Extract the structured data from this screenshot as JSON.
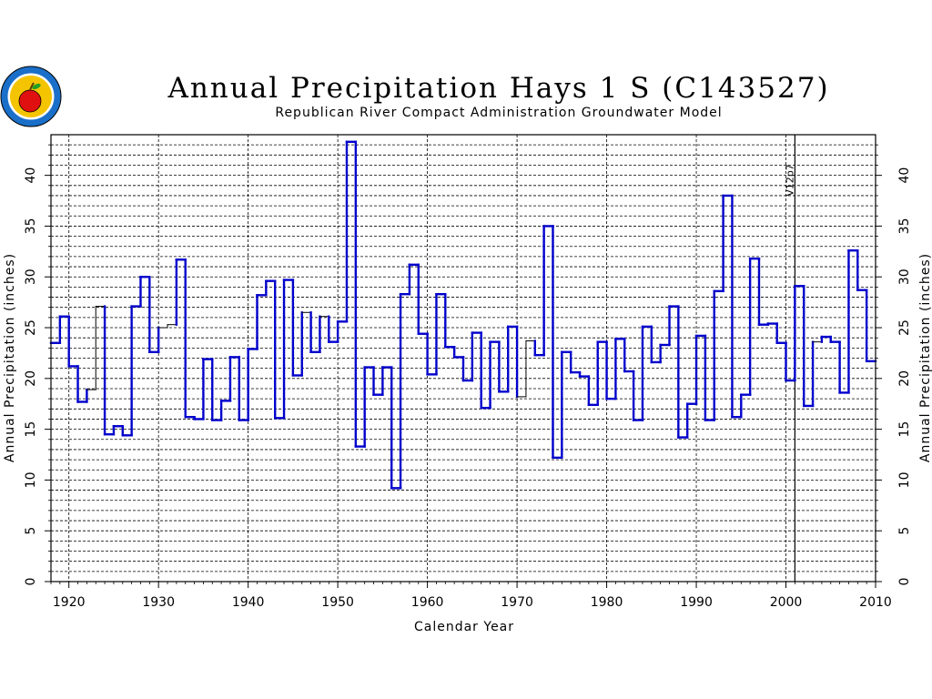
{
  "chart_data": {
    "type": "step",
    "title": "Annual Precipitation Hays 1 S (C143527)",
    "subtitle": "Republican River Compact Administration Groundwater Model",
    "xlabel": "Calendar Year",
    "ylabel": "Annual Precipitation (inches)",
    "xlim": [
      1918,
      2010
    ],
    "ylim": [
      0,
      44
    ],
    "x_ticks": [
      1920,
      1930,
      1940,
      1950,
      1960,
      1970,
      1980,
      1990,
      2000,
      2010
    ],
    "y_ticks": [
      0,
      5,
      10,
      15,
      20,
      25,
      30,
      35,
      40
    ],
    "y_minor_step": 1,
    "grid": true,
    "marker": {
      "year": 2001,
      "label": "V12p7"
    },
    "colors": {
      "estimated": "#0000cc",
      "measured": "#000000"
    },
    "series": [
      {
        "years": [
          1918,
          1919,
          1920,
          1921,
          1922,
          1923,
          1924,
          1925,
          1926,
          1927,
          1928,
          1929,
          1930,
          1931,
          1932,
          1933,
          1934,
          1935,
          1936,
          1937,
          1938,
          1939,
          1940,
          1941,
          1942,
          1943,
          1944,
          1945,
          1946,
          1947,
          1948,
          1949,
          1950,
          1951,
          1952,
          1953,
          1954,
          1955,
          1956,
          1957,
          1958,
          1959,
          1960,
          1961,
          1962,
          1963,
          1964,
          1965,
          1966,
          1967,
          1968,
          1969,
          1970,
          1971,
          1972,
          1973,
          1974,
          1975,
          1976,
          1977,
          1978,
          1979,
          1980,
          1981,
          1982,
          1983,
          1984,
          1985,
          1986,
          1987,
          1988,
          1989,
          1990,
          1991,
          1992,
          1993,
          1994,
          1995,
          1996,
          1997,
          1998,
          1999,
          2000,
          2001,
          2002,
          2003,
          2004,
          2005,
          2006,
          2007,
          2008,
          2009
        ],
        "values": [
          23.5,
          26.1,
          21.2,
          17.7,
          18.9,
          27.1,
          14.5,
          15.3,
          14.4,
          27.1,
          30.0,
          22.6,
          25.0,
          25.3,
          31.7,
          16.2,
          16.0,
          21.9,
          15.9,
          17.8,
          22.1,
          15.9,
          22.9,
          28.2,
          29.6,
          16.1,
          29.7,
          20.3,
          26.5,
          22.6,
          26.1,
          23.6,
          25.6,
          43.3,
          13.3,
          21.1,
          18.4,
          21.1,
          9.2,
          28.3,
          31.2,
          24.4,
          20.4,
          28.3,
          23.1,
          22.1,
          19.8,
          24.5,
          17.1,
          23.6,
          18.7,
          25.1,
          18.2,
          23.7,
          22.3,
          35.0,
          12.2,
          22.6,
          20.6,
          20.2,
          17.4,
          23.6,
          18.0,
          23.9,
          20.7,
          15.9,
          25.1,
          21.6,
          23.3,
          27.1,
          14.2,
          17.5,
          24.2,
          15.9,
          28.6,
          38.0,
          16.2,
          18.4,
          31.8,
          25.3,
          25.4,
          23.5,
          19.8,
          29.1,
          17.3,
          23.6,
          24.1,
          23.6,
          18.6,
          32.6,
          28.7,
          21.7
        ],
        "measured": [
          false,
          false,
          false,
          false,
          true,
          true,
          false,
          false,
          false,
          false,
          false,
          false,
          true,
          true,
          false,
          false,
          false,
          false,
          false,
          false,
          false,
          false,
          false,
          false,
          false,
          false,
          false,
          false,
          true,
          false,
          true,
          false,
          false,
          false,
          false,
          false,
          false,
          false,
          false,
          false,
          false,
          false,
          false,
          false,
          false,
          false,
          false,
          false,
          false,
          false,
          false,
          false,
          true,
          true,
          false,
          false,
          false,
          false,
          false,
          false,
          false,
          false,
          false,
          false,
          false,
          false,
          false,
          false,
          false,
          false,
          false,
          false,
          false,
          false,
          false,
          false,
          false,
          false,
          false,
          false,
          false,
          false,
          false,
          false,
          false,
          true,
          false,
          false,
          false,
          false,
          false,
          false
        ]
      }
    ]
  }
}
